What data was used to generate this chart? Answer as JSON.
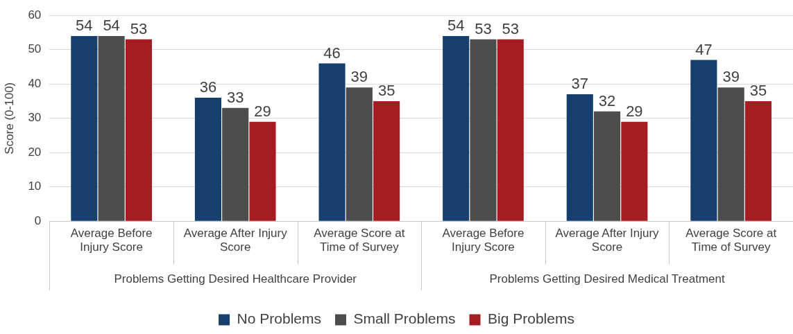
{
  "chart_data": {
    "type": "bar",
    "ylabel": "Score (0-100)",
    "categories": [
      "Average Before Injury Score",
      "Average After Injury Score",
      "Average Score at Time of Survey",
      "Average Before Injury Score",
      "Average After Injury Score",
      "Average Score at Time of Survey"
    ],
    "series": [
      {
        "name": "No Problems",
        "color": "#173f6e",
        "values": [
          54,
          36,
          46,
          54,
          37,
          47
        ]
      },
      {
        "name": "Small Problems",
        "color": "#4d4d4d",
        "values": [
          54,
          33,
          39,
          53,
          32,
          39
        ]
      },
      {
        "name": "Big Problems",
        "color": "#a51c22",
        "values": [
          53,
          29,
          35,
          53,
          29,
          35
        ]
      }
    ],
    "ylim": [
      0,
      60
    ],
    "yticks": [
      0,
      10,
      20,
      30,
      40,
      50,
      60
    ],
    "grid": "y",
    "legend": "bottom",
    "data_labels": true,
    "annotations": [
      "Problems Getting Desired Healthcare Provider",
      "Problems Getting Desired Medical Treatment"
    ]
  }
}
